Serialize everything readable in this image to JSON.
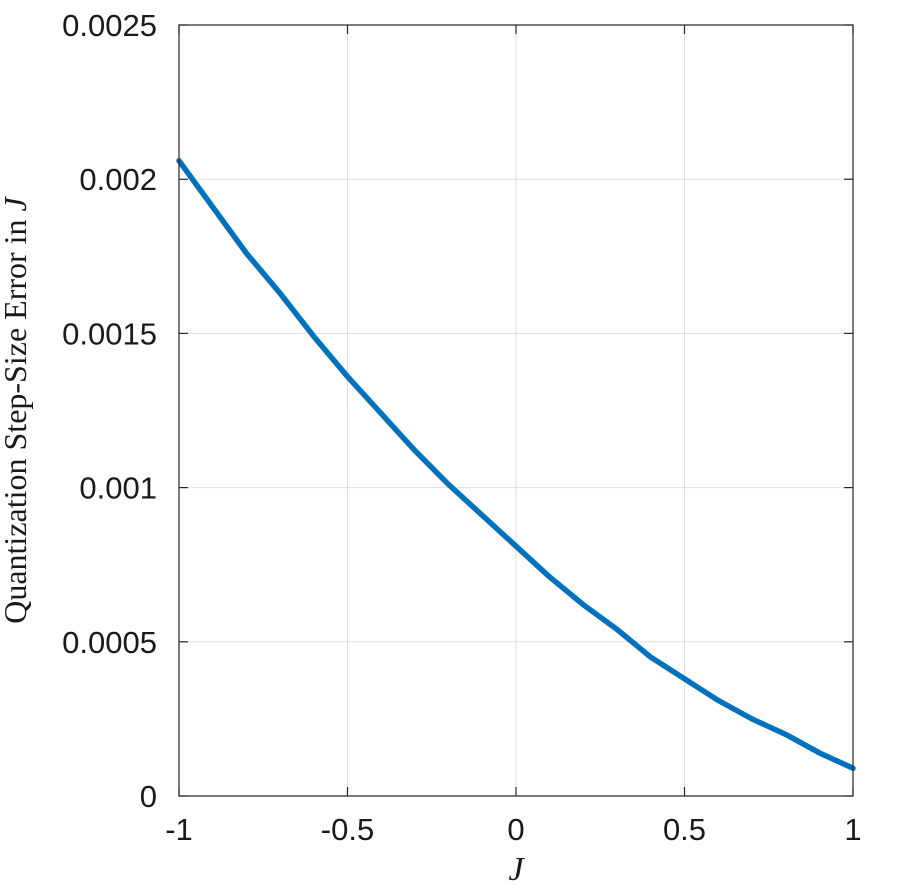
{
  "chart_data": {
    "type": "line",
    "title": "",
    "xlabel": "J",
    "ylabel_text": "Quantization Step-Size Error in ",
    "ylabel_var": "J",
    "xlim": [
      -1,
      1
    ],
    "ylim": [
      0,
      0.0025
    ],
    "x_ticks": [
      -1,
      -0.5,
      0,
      0.5,
      1
    ],
    "x_tick_labels": [
      "-1",
      "-0.5",
      "0",
      "0.5",
      "1"
    ],
    "y_ticks": [
      0,
      0.0005,
      0.001,
      0.0015,
      0.002,
      0.0025
    ],
    "y_tick_labels": [
      "0",
      "0.0005",
      "0.001",
      "0.0015",
      "0.002",
      "0.0025"
    ],
    "grid": true,
    "series": [
      {
        "color": "#0072BD",
        "x": [
          -1,
          -0.9,
          -0.8,
          -0.7,
          -0.6,
          -0.5,
          -0.4,
          -0.3,
          -0.2,
          -0.1,
          0,
          0.1,
          0.2,
          0.3,
          0.4,
          0.5,
          0.6,
          0.7,
          0.8,
          0.9,
          1
        ],
        "y": [
          0.00206,
          0.00191,
          0.00176,
          0.00163,
          0.00149,
          0.00136,
          0.00124,
          0.00112,
          0.00101,
          0.00091,
          0.00081,
          0.00071,
          0.00062,
          0.00054,
          0.00045,
          0.00038,
          0.00031,
          0.00025,
          0.0002,
          0.00014,
          9e-05
        ]
      }
    ]
  }
}
